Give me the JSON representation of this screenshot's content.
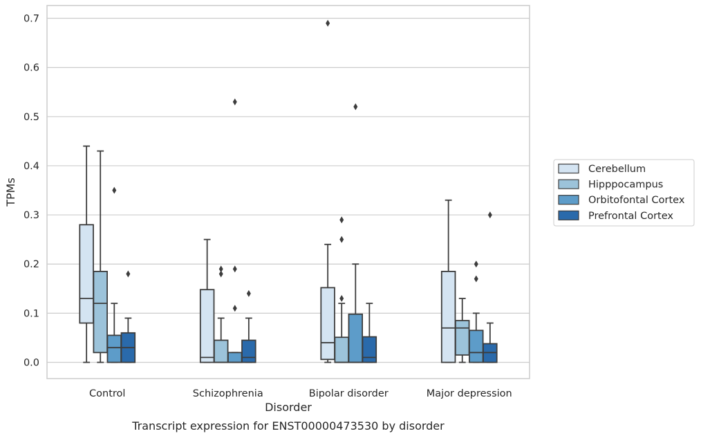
{
  "caption": "Transcript expression for ENST00000473530 by disorder",
  "chart_data": {
    "type": "box",
    "xlabel": "Disorder",
    "ylabel": "TPMs",
    "ylim": [
      -0.033,
      0.726
    ],
    "yticks": [
      0.0,
      0.1,
      0.2,
      0.3,
      0.4,
      0.5,
      0.6,
      0.7
    ],
    "ytick_labels": [
      "0.0",
      "0.1",
      "0.2",
      "0.3",
      "0.4",
      "0.5",
      "0.6",
      "0.7"
    ],
    "grid": "horizontal",
    "legend_position": "right",
    "categories": [
      "Control",
      "Schizophrenia",
      "Bipolar disorder",
      "Major depression"
    ],
    "series": [
      {
        "name": "Cerebellum",
        "color": "#d4e4f2",
        "boxes": [
          {
            "q1": 0.08,
            "median": 0.13,
            "q3": 0.28,
            "whisker_low": 0.0,
            "whisker_high": 0.44,
            "outliers": []
          },
          {
            "q1": 0.0,
            "median": 0.01,
            "q3": 0.148,
            "whisker_low": 0.0,
            "whisker_high": 0.25,
            "outliers": []
          },
          {
            "q1": 0.006,
            "median": 0.04,
            "q3": 0.152,
            "whisker_low": 0.0,
            "whisker_high": 0.24,
            "outliers": [
              0.69
            ]
          },
          {
            "q1": 0.0,
            "median": 0.07,
            "q3": 0.185,
            "whisker_low": 0.0,
            "whisker_high": 0.33,
            "outliers": []
          }
        ]
      },
      {
        "name": "Hipppocampus",
        "color": "#9cc3da",
        "boxes": [
          {
            "q1": 0.02,
            "median": 0.12,
            "q3": 0.185,
            "whisker_low": 0.0,
            "whisker_high": 0.43,
            "outliers": []
          },
          {
            "q1": 0.0,
            "median": 0.0,
            "q3": 0.045,
            "whisker_low": 0.0,
            "whisker_high": 0.09,
            "outliers": [
              0.18,
              0.19
            ]
          },
          {
            "q1": 0.0,
            "median": 0.0,
            "q3": 0.051,
            "whisker_low": 0.0,
            "whisker_high": 0.12,
            "outliers": [
              0.13,
              0.25,
              0.29
            ]
          },
          {
            "q1": 0.015,
            "median": 0.07,
            "q3": 0.085,
            "whisker_low": 0.0,
            "whisker_high": 0.13,
            "outliers": []
          }
        ]
      },
      {
        "name": "Orbitofontal Cortex",
        "color": "#5d9cc9",
        "boxes": [
          {
            "q1": 0.0,
            "median": 0.03,
            "q3": 0.055,
            "whisker_low": 0.0,
            "whisker_high": 0.12,
            "outliers": [
              0.35
            ]
          },
          {
            "q1": 0.0,
            "median": 0.0,
            "q3": 0.02,
            "whisker_low": 0.0,
            "whisker_high": 0.02,
            "outliers": [
              0.11,
              0.19,
              0.53
            ]
          },
          {
            "q1": 0.0,
            "median": 0.0,
            "q3": 0.098,
            "whisker_low": 0.0,
            "whisker_high": 0.2,
            "outliers": [
              0.52
            ]
          },
          {
            "q1": 0.0,
            "median": 0.02,
            "q3": 0.065,
            "whisker_low": 0.0,
            "whisker_high": 0.1,
            "outliers": [
              0.17,
              0.2
            ]
          }
        ]
      },
      {
        "name": "Prefrontal Cortex",
        "color": "#2a6aab",
        "boxes": [
          {
            "q1": 0.0,
            "median": 0.03,
            "q3": 0.06,
            "whisker_low": 0.0,
            "whisker_high": 0.09,
            "outliers": [
              0.18
            ]
          },
          {
            "q1": 0.0,
            "median": 0.01,
            "q3": 0.045,
            "whisker_low": 0.0,
            "whisker_high": 0.09,
            "outliers": [
              0.14
            ]
          },
          {
            "q1": 0.0,
            "median": 0.01,
            "q3": 0.052,
            "whisker_low": 0.0,
            "whisker_high": 0.12,
            "outliers": []
          },
          {
            "q1": 0.0,
            "median": 0.02,
            "q3": 0.038,
            "whisker_low": 0.0,
            "whisker_high": 0.08,
            "outliers": [
              0.3
            ]
          }
        ]
      }
    ]
  }
}
